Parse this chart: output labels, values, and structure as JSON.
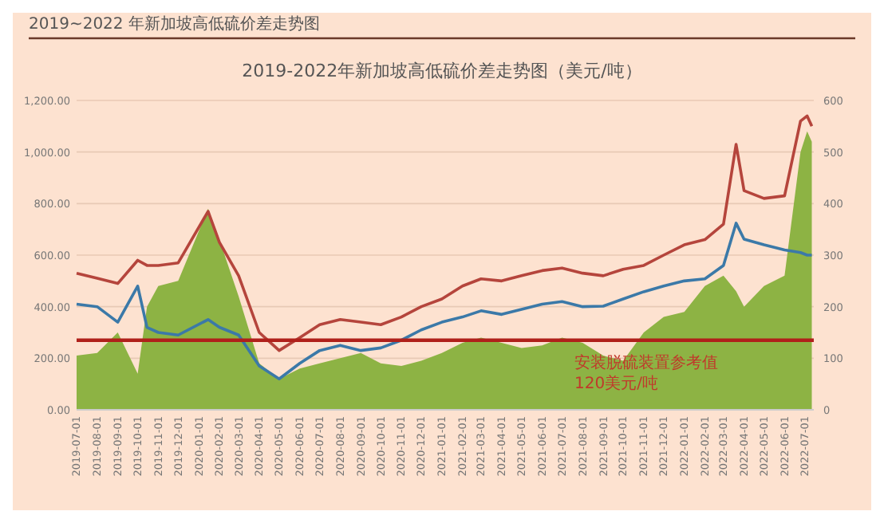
{
  "chart_data": {
    "type": "line",
    "title": "2019-2022年新加坡高低硫价差走势图（美元/吨）",
    "annotations": [
      "2019~2022 年新加坡高低硫价差走势图"
    ],
    "x": [
      "2019-07-01",
      "2019-08-01",
      "2019-09-01",
      "2019-10-01",
      "2019-10-15",
      "2019-11-01",
      "2019-12-01",
      "2020-01-15",
      "2020-02-01",
      "2020-03-01",
      "2020-04-01",
      "2020-05-01",
      "2020-06-01",
      "2020-07-01",
      "2020-08-01",
      "2020-09-01",
      "2020-10-01",
      "2020-11-01",
      "2020-12-01",
      "2021-01-01",
      "2021-02-01",
      "2021-03-01",
      "2021-04-01",
      "2021-05-01",
      "2021-06-01",
      "2021-07-01",
      "2021-08-01",
      "2021-09-01",
      "2021-10-01",
      "2021-11-01",
      "2021-12-01",
      "2022-01-01",
      "2022-02-01",
      "2022-03-01",
      "2022-03-20",
      "2022-04-01",
      "2022-05-01",
      "2022-06-01",
      "2022-06-25",
      "2022-07-05",
      "2022-07-12"
    ],
    "series": [
      {
        "type": "area",
        "axis": "y2",
        "color": "#8db344",
        "values": [
          105,
          110,
          150,
          70,
          200,
          240,
          250,
          390,
          330,
          220,
          90,
          60,
          80,
          90,
          100,
          110,
          90,
          85,
          95,
          110,
          130,
          140,
          130,
          120,
          125,
          140,
          130,
          105,
          95,
          150,
          180,
          190,
          240,
          260,
          230,
          200,
          240,
          260,
          500,
          540,
          520
        ]
      },
      {
        "color": "#b5453c",
        "values": [
          530,
          510,
          490,
          580,
          560,
          560,
          570,
          770,
          650,
          520,
          300,
          230,
          280,
          330,
          350,
          340,
          330,
          360,
          400,
          430,
          480,
          508,
          500,
          520,
          540,
          550,
          530,
          520,
          545,
          560,
          600,
          640,
          660,
          720,
          1030,
          850,
          820,
          830,
          1120,
          1140,
          1100
        ]
      },
      {
        "color": "#3b79a8",
        "values": [
          410,
          400,
          340,
          480,
          320,
          300,
          290,
          350,
          320,
          290,
          170,
          120,
          180,
          230,
          250,
          230,
          240,
          270,
          310,
          340,
          360,
          384,
          370,
          390,
          410,
          420,
          400,
          402,
          430,
          458,
          480,
          500,
          508,
          560,
          724,
          662,
          640,
          620,
          610,
          600,
          600
        ]
      }
    ],
    "xlim": [
      "2019-07-01",
      "2022-07-15"
    ],
    "xticks": [
      {
        "value": "2019-07-01",
        "label": "2019-07-01"
      },
      {
        "value": "2019-08-01",
        "label": "2019-08-01"
      },
      {
        "value": "2019-09-01",
        "label": "2019-09-01"
      },
      {
        "value": "2019-10-01",
        "label": "2019-10-01"
      },
      {
        "value": "2019-11-01",
        "label": "2019-11-01"
      },
      {
        "value": "2019-12-01",
        "label": "2019-12-01"
      },
      {
        "value": "2020-01-01",
        "label": "2020-01-01"
      },
      {
        "value": "2020-02-01",
        "label": "2020-02-01"
      },
      {
        "value": "2020-03-01",
        "label": "2020-03-01"
      },
      {
        "value": "2020-04-01",
        "label": "2020-04-01"
      },
      {
        "value": "2020-05-01",
        "label": "2020-05-01"
      },
      {
        "value": "2020-06-01",
        "label": "2020-06-01"
      },
      {
        "value": "2020-07-01",
        "label": "2020-07-01"
      },
      {
        "value": "2020-08-01",
        "label": "2020-08-01"
      },
      {
        "value": "2020-09-01",
        "label": "2020-09-01"
      },
      {
        "value": "2020-10-01",
        "label": "2020-10-01"
      },
      {
        "value": "2020-11-01",
        "label": "2020-11-01"
      },
      {
        "value": "2020-12-01",
        "label": "2020-12-01"
      },
      {
        "value": "2021-01-01",
        "label": "2021-01-01"
      },
      {
        "value": "2021-02-01",
        "label": "2021-02-01"
      },
      {
        "value": "2021-03-01",
        "label": "2021-03-01"
      },
      {
        "value": "2021-04-01",
        "label": "2021-04-01"
      },
      {
        "value": "2021-05-01",
        "label": "2021-05-01"
      },
      {
        "value": "2021-06-01",
        "label": "2021-06-01"
      },
      {
        "value": "2021-07-01",
        "label": "2021-07-01"
      },
      {
        "value": "2021-08-01",
        "label": "2021-08-01"
      },
      {
        "value": "2021-09-01",
        "label": "2021-09-01"
      },
      {
        "value": "2021-10-01",
        "label": "2021-10-01"
      },
      {
        "value": "2021-11-01",
        "label": "2021-11-01"
      },
      {
        "value": "2021-12-01",
        "label": "2021-12-01"
      },
      {
        "value": "2022-01-01",
        "label": "2022-01-01"
      },
      {
        "value": "2022-02-01",
        "label": "2022-02-01"
      },
      {
        "value": "2022-03-01",
        "label": "2022-03-01"
      },
      {
        "value": "2022-04-01",
        "label": "2022-04-01"
      },
      {
        "value": "2022-05-01",
        "label": "2022-05-01"
      },
      {
        "value": "2022-06-01",
        "label": "2022-06-01"
      },
      {
        "value": "2022-07-01",
        "label": "2022-07-01"
      }
    ],
    "ylim": [
      0,
      1200
    ],
    "yticks": [
      {
        "value": 0,
        "label": "0.00"
      },
      {
        "value": 200,
        "label": "200.00"
      },
      {
        "value": 400,
        "label": "400.00"
      },
      {
        "value": 600,
        "label": "600.00"
      },
      {
        "value": 800,
        "label": "800.00"
      },
      {
        "value": 1000,
        "label": "1,000.00"
      },
      {
        "value": 1200,
        "label": "1,200.00"
      }
    ],
    "y2lim": [
      0,
      600
    ],
    "y2ticks": [
      0,
      100,
      200,
      300,
      400,
      500,
      600
    ],
    "ref_lines": [
      {
        "axis": "y2",
        "value": 135,
        "label": "安装脱硫装置参考值 120美元/吨",
        "color": "#b0201a"
      }
    ],
    "grid": "y",
    "marker": "none",
    "line_style": "solid"
  }
}
